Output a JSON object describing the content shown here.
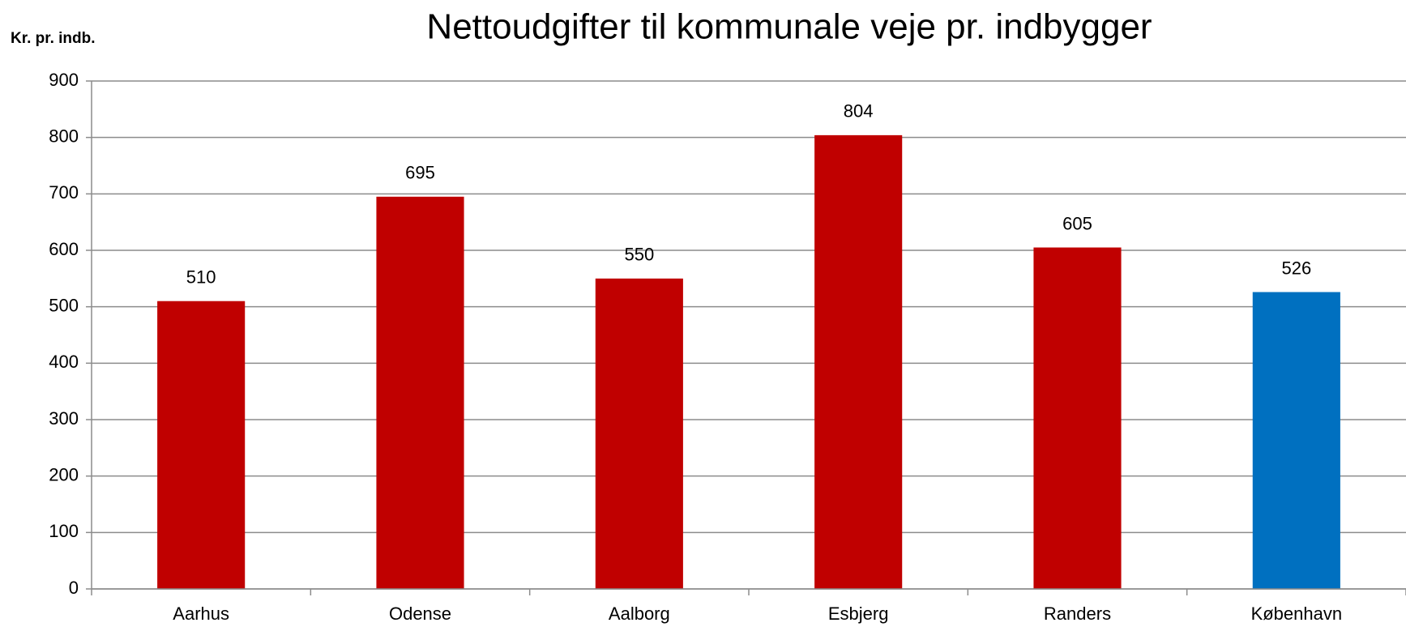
{
  "chart_data": {
    "type": "bar",
    "title": "Nettoudgifter til kommunale veje pr. indbygger",
    "y_label": "Kr. pr. indb.",
    "categories": [
      "Aarhus",
      "Odense",
      "Aalborg",
      "Esbjerg",
      "Randers",
      "København"
    ],
    "values": [
      510,
      695,
      550,
      804,
      605,
      526
    ],
    "colors": [
      "#c00000",
      "#c00000",
      "#c00000",
      "#c00000",
      "#c00000",
      "#0070c0"
    ],
    "ylim": [
      0,
      900
    ],
    "yticks": [
      0,
      100,
      200,
      300,
      400,
      500,
      600,
      700,
      800,
      900
    ],
    "grid": true
  }
}
